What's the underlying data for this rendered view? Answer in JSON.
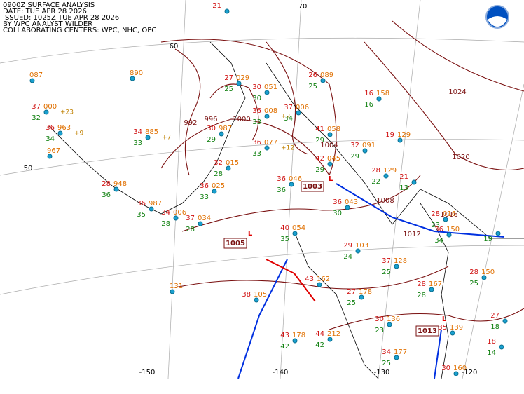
{
  "header": {
    "lines": [
      "0900Z SURFACE ANALYSIS",
      "DATE: TUE APR 28 2026",
      "ISSUED: 1025Z TUE APR 28 2026",
      "BY WPC ANALYST WILDER",
      "COLLABORATING CENTERS: WPC, NHC, OPC"
    ]
  },
  "grid_labels": [
    "70",
    "60",
    "50",
    "-150",
    "-140",
    "-130",
    "-120"
  ],
  "isobar_labels": [
    "992",
    "996",
    "1000",
    "1004",
    "1008",
    "1012",
    "1016",
    "1020",
    "1024"
  ],
  "lows": [
    {
      "symbol": "L",
      "pressure": "1003"
    },
    {
      "symbol": "L",
      "pressure": "1005"
    },
    {
      "symbol": "L",
      "pressure": "1013"
    }
  ],
  "stations": [
    {
      "t": "21"
    },
    {
      "p": "087"
    },
    {
      "p": "890"
    },
    {
      "t": "37",
      "p": "000",
      "d": "32",
      "tend": "+23"
    },
    {
      "t": "36",
      "p": "963",
      "d": "34",
      "tend": "+9"
    },
    {
      "p": "967"
    },
    {
      "t": "34",
      "p": "885",
      "d": "33",
      "tend": "+7"
    },
    {
      "t": "30",
      "p": "987",
      "d": "29"
    },
    {
      "t": "27",
      "p": "029",
      "d": "25"
    },
    {
      "t": "30",
      "p": "051",
      "d": "30"
    },
    {
      "t": "36",
      "p": "008",
      "d": "33",
      "tend": "+2"
    },
    {
      "t": "37",
      "p": "006",
      "d": "34"
    },
    {
      "t": "26",
      "p": "089",
      "d": "25"
    },
    {
      "t": "16",
      "p": "158",
      "d": "16"
    },
    {
      "t": "41",
      "p": "058",
      "d": "29"
    },
    {
      "t": "36",
      "p": "077",
      "d": "33",
      "tend": "+12"
    },
    {
      "t": "32",
      "p": "091",
      "d": "29"
    },
    {
      "t": "19",
      "p": "129"
    },
    {
      "t": "32",
      "p": "015",
      "d": "28"
    },
    {
      "t": "42",
      "p": "045",
      "d": "29"
    },
    {
      "t": "28",
      "p": "129",
      "d": "22"
    },
    {
      "t": "21",
      "d": "13"
    },
    {
      "t": "36",
      "p": "046",
      "d": "36"
    },
    {
      "t": "28",
      "p": "948",
      "d": "36"
    },
    {
      "t": "36",
      "p": "025",
      "d": "33"
    },
    {
      "t": "36",
      "p": "043",
      "d": "30"
    },
    {
      "t": "34",
      "p": "006",
      "d": "28"
    },
    {
      "t": "36",
      "p": "987",
      "d": "35"
    },
    {
      "t": "37",
      "p": "034",
      "d": "28"
    },
    {
      "t": "40",
      "p": "054",
      "d": "35"
    },
    {
      "t": "28",
      "p": "016",
      "d": "23"
    },
    {
      "t": "36",
      "p": "150",
      "d": "34"
    },
    {
      "t": "29",
      "p": "103",
      "d": "24"
    },
    {
      "t": "37",
      "p": "128",
      "d": "25"
    },
    {
      "p": "131"
    },
    {
      "t": "38",
      "p": "105"
    },
    {
      "t": "43",
      "p": "162"
    },
    {
      "t": "27",
      "p": "178",
      "d": "25"
    },
    {
      "t": "28",
      "p": "167",
      "d": "28"
    },
    {
      "t": "28",
      "p": "150",
      "d": "25"
    },
    {
      "t": "30",
      "p": "136",
      "d": "23"
    },
    {
      "t": "43",
      "p": "178",
      "d": "42"
    },
    {
      "t": "44",
      "p": "212",
      "d": "42"
    },
    {
      "t": "34",
      "p": "177",
      "d": "25"
    },
    {
      "t": "35",
      "p": "139"
    },
    {
      "t": "30",
      "p": "160"
    },
    {
      "t": "27",
      "d": "18"
    },
    {
      "t": "18",
      "d": "14"
    },
    {
      "d": "19"
    }
  ]
}
